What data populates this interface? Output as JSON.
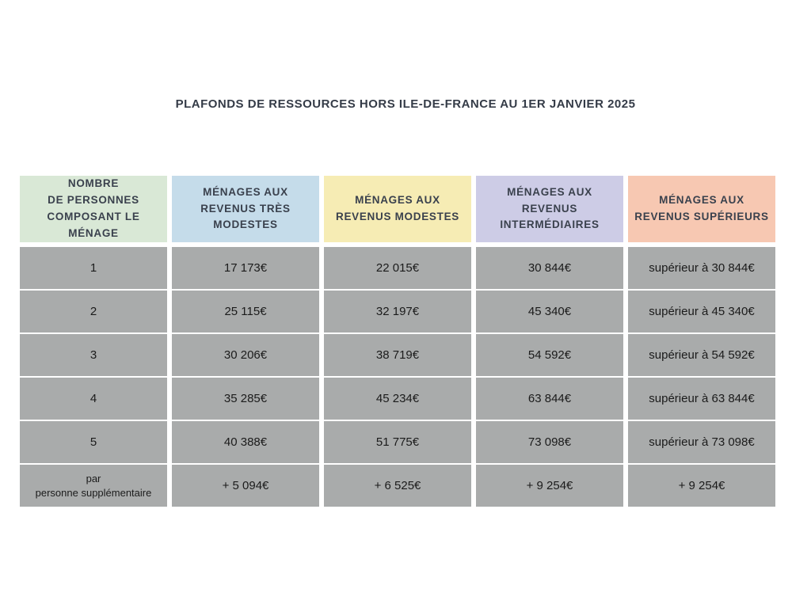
{
  "page": {
    "title": "PLAFONDS DE RESSOURCES HORS ILE-DE-FRANCE AU 1ER JANVIER 2025",
    "background": "#ffffff"
  },
  "colors": {
    "title_text": "#343b47",
    "header_text": "#3a414d",
    "cell_text": "#1b1b1b",
    "cell_background": "#a9abab",
    "gap_color": "#ffffff",
    "header_green": "#d9e8d6",
    "header_blue": "#c5dcea",
    "header_yellow": "#f6ecb4",
    "header_purple": "#cdcce6",
    "header_salmon": "#f7c8b2"
  },
  "table": {
    "columns": [
      {
        "id": "household-size",
        "label": "NOMBRE\nDE PERSONNES\nCOMPOSANT LE\nMÉNAGE",
        "background": "#d9e8d6"
      },
      {
        "id": "revenus-tres-modestes",
        "label": "MÉNAGES AUX\nREVENUS TRÈS\nMODESTES",
        "background": "#c5dcea"
      },
      {
        "id": "revenus-modestes",
        "label": "MÉNAGES AUX\nREVENUS MODESTES",
        "background": "#f6ecb4"
      },
      {
        "id": "revenus-intermediaires",
        "label": "MÉNAGES AUX\nREVENUS\nINTERMÉDIAIRES",
        "background": "#cdcce6"
      },
      {
        "id": "revenus-superieurs",
        "label": "MÉNAGES AUX\nREVENUS SUPÉRIEURS",
        "background": "#f7c8b2"
      }
    ],
    "rows": [
      {
        "cells": [
          "1",
          "17 173€",
          "22 015€",
          "30 844€",
          "supérieur à 30 844€"
        ]
      },
      {
        "cells": [
          "2",
          "25 115€",
          "32 197€",
          "45 340€",
          "supérieur à 45 340€"
        ]
      },
      {
        "cells": [
          "3",
          "30 206€",
          "38 719€",
          "54 592€",
          "supérieur à 54 592€"
        ]
      },
      {
        "cells": [
          "4",
          "35 285€",
          "45 234€",
          "63 844€",
          "supérieur à 63 844€"
        ]
      },
      {
        "cells": [
          "5",
          "40 388€",
          "51 775€",
          "73 098€",
          "supérieur à 73 098€"
        ]
      },
      {
        "cells": [
          "par\npersonne supplémentaire",
          "+ 5 094€",
          "+ 6 525€",
          "+ 9 254€",
          "+ 9 254€"
        ]
      }
    ]
  },
  "chart_data": {
    "type": "table",
    "title": "PLAFONDS DE RESSOURCES HORS ILE-DE-FRANCE AU 1ER JANVIER 2025",
    "columns": [
      "NOMBRE DE PERSONNES COMPOSANT LE MÉNAGE",
      "MÉNAGES AUX REVENUS TRÈS MODESTES",
      "MÉNAGES AUX REVENUS MODESTES",
      "MÉNAGES AUX REVENUS INTERMÉDIAIRES",
      "MÉNAGES AUX REVENUS SUPÉRIEURS"
    ],
    "rows": [
      [
        "1",
        "17 173€",
        "22 015€",
        "30 844€",
        "supérieur à 30 844€"
      ],
      [
        "2",
        "25 115€",
        "32 197€",
        "45 340€",
        "supérieur à 45 340€"
      ],
      [
        "3",
        "30 206€",
        "38 719€",
        "54 592€",
        "supérieur à 54 592€"
      ],
      [
        "4",
        "35 285€",
        "45 234€",
        "63 844€",
        "supérieur à 63 844€"
      ],
      [
        "5",
        "40 388€",
        "51 775€",
        "73 098€",
        "supérieur à 73 098€"
      ],
      [
        "par personne supplémentaire",
        "+ 5 094€",
        "+ 6 525€",
        "+ 9 254€",
        "+ 9 254€"
      ]
    ],
    "units": "EUR"
  }
}
